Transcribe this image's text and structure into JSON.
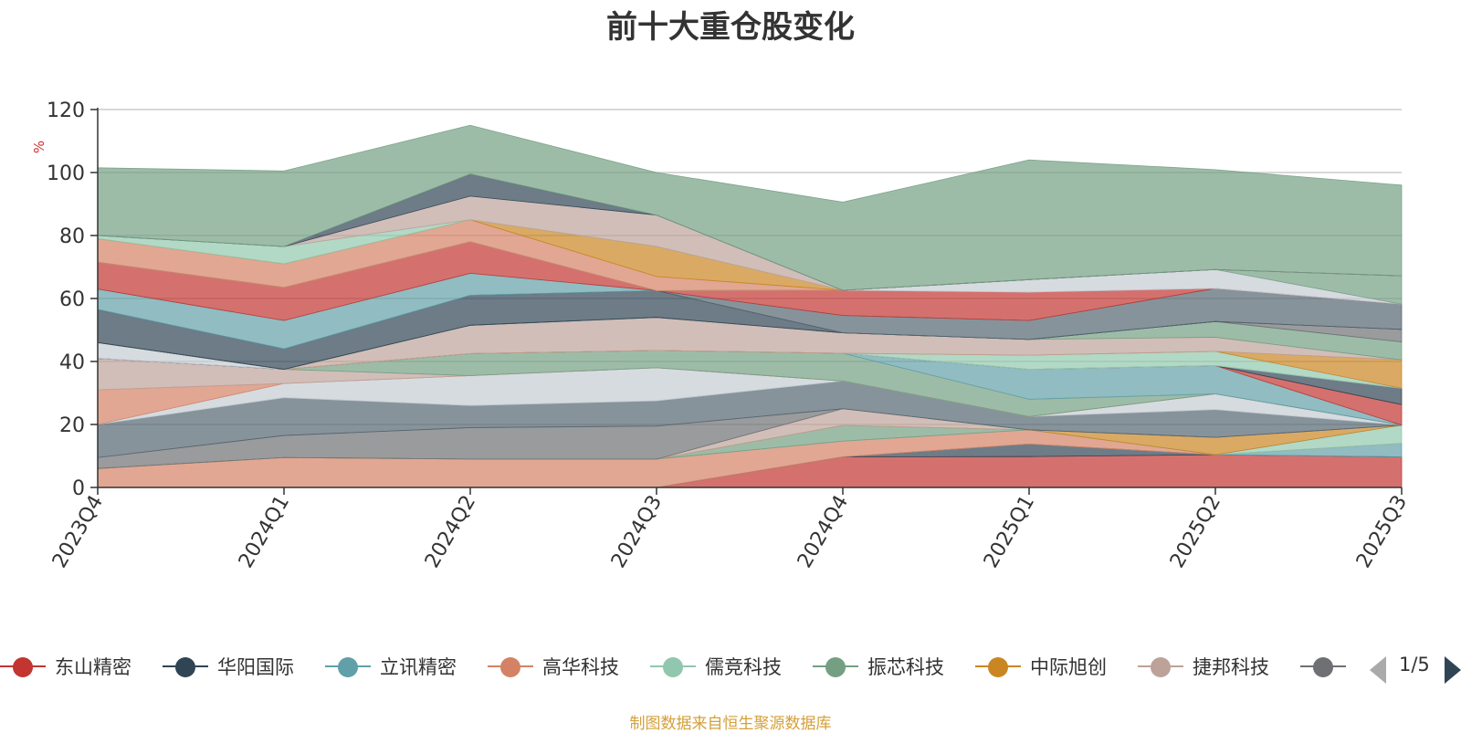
{
  "title": "前十大重仓股变化",
  "source": "制图数据来自恒生聚源数据库",
  "pager": {
    "text": "1/5"
  },
  "chart_data": {
    "type": "area",
    "stacked": true,
    "ylabel": "%",
    "ylim": [
      0,
      120
    ],
    "yticks": [
      0,
      20,
      40,
      60,
      80,
      100,
      120
    ],
    "grid": true,
    "legend_position": "bottom",
    "categories": [
      "2023Q4",
      "2024Q1",
      "2024Q2",
      "2024Q3",
      "2024Q4",
      "2025Q1",
      "2025Q2",
      "2025Q3"
    ],
    "series": [
      {
        "name": "东山精密",
        "color": "#c23531",
        "values": [
          0,
          0,
          0,
          0,
          9.7,
          9.8,
          10.4,
          9.7
        ]
      },
      {
        "name": "华阳国际",
        "color": "#2f4554",
        "values": [
          0,
          0,
          0,
          0,
          0,
          4,
          0,
          0
        ]
      },
      {
        "name": "立讯精密",
        "color": "#61a0a8",
        "values": [
          0,
          0,
          0,
          0,
          0,
          0,
          0,
          4.3
        ]
      },
      {
        "name": "高华科技",
        "color": "#d48265",
        "values": [
          6,
          9.5,
          9,
          9,
          5,
          4.5,
          0,
          0
        ]
      },
      {
        "name": "儒竞科技",
        "color": "#91c7ae",
        "values": [
          0,
          0,
          0,
          0,
          0,
          0,
          0,
          5.8
        ]
      },
      {
        "name": "振芯科技",
        "color": "#749f83",
        "values": [
          0,
          0,
          0,
          0,
          5,
          0,
          0,
          0
        ]
      },
      {
        "name": "中际旭创",
        "color": "#ca8622",
        "values": [
          0,
          0,
          0,
          0,
          0,
          0,
          5.5,
          0
        ]
      },
      {
        "name": "捷邦科技",
        "color": "#bda29a",
        "values": [
          0,
          0,
          0,
          0,
          5.3,
          0,
          0,
          0
        ]
      },
      {
        "name": "",
        "color": "#6e7074",
        "values": [
          3.5,
          7,
          10,
          10.5,
          0,
          0,
          0,
          0
        ]
      },
      {
        "name": "",
        "color": "#546570",
        "values": [
          10.5,
          12,
          7,
          8,
          8.8,
          4.2,
          8.8,
          0
        ]
      },
      {
        "name": "",
        "color": "#c4ccd3",
        "values": [
          0,
          4.5,
          9.5,
          10.5,
          0,
          0,
          5,
          0
        ]
      },
      {
        "name": "",
        "color": "#d48265",
        "values": [
          11,
          0,
          0,
          0,
          0,
          0,
          0,
          0
        ]
      },
      {
        "name": "",
        "color": "#bda29a",
        "values": [
          10,
          4.5,
          0,
          0,
          0,
          0,
          0,
          0
        ]
      },
      {
        "name": "",
        "color": "#749f83",
        "values": [
          0,
          0,
          7,
          5.5,
          8.8,
          5.5,
          0,
          0
        ]
      },
      {
        "name": "",
        "color": "#61a0a8",
        "values": [
          0,
          0,
          0,
          0,
          0,
          9.5,
          9,
          0
        ]
      },
      {
        "name": "",
        "color": "#c23531",
        "values": [
          0,
          0,
          0,
          0,
          0,
          0,
          0,
          6.5
        ]
      },
      {
        "name": "",
        "color": "#2f4554",
        "values": [
          0,
          0,
          0,
          0,
          0,
          0,
          0,
          5.2
        ]
      },
      {
        "name": "",
        "color": "#c4ccd3",
        "values": [
          5,
          0,
          0,
          0,
          0,
          0,
          0,
          0
        ]
      },
      {
        "name": "",
        "color": "#91c7ae",
        "values": [
          0,
          0,
          0,
          0,
          0,
          4.5,
          4.5,
          0
        ]
      },
      {
        "name": "",
        "color": "#ca8622",
        "values": [
          0,
          0,
          0,
          0,
          0,
          0,
          0,
          9
        ]
      },
      {
        "name": "",
        "color": "#bda29a",
        "values": [
          0,
          0,
          9,
          10.5,
          6.5,
          5,
          4.5,
          0
        ]
      },
      {
        "name": "",
        "color": "#749f83",
        "values": [
          0,
          0,
          0,
          0,
          0,
          0,
          5,
          5.7
        ]
      },
      {
        "name": "",
        "color": "#6e7074",
        "values": [
          0,
          0,
          0,
          0,
          0,
          0,
          0,
          4
        ]
      },
      {
        "name": "",
        "color": "#2f4554",
        "values": [
          10.5,
          6.5,
          9.5,
          8.5,
          0,
          0,
          0,
          0
        ]
      },
      {
        "name": "",
        "color": "#546570",
        "values": [
          0,
          0,
          0,
          0,
          5.5,
          6,
          10.5,
          8
        ]
      },
      {
        "name": "",
        "color": "#61a0a8",
        "values": [
          6.5,
          9,
          7,
          0,
          0,
          0,
          0,
          0
        ]
      },
      {
        "name": "",
        "color": "#c23531",
        "values": [
          8.5,
          10.5,
          10,
          0,
          8,
          9,
          0,
          0
        ]
      },
      {
        "name": "",
        "color": "#c4ccd3",
        "values": [
          0,
          0,
          0,
          0,
          0,
          4,
          6,
          0
        ]
      },
      {
        "name": "",
        "color": "#749f83",
        "values": [
          0,
          0,
          0,
          0,
          0,
          0,
          0,
          9
        ]
      },
      {
        "name": "",
        "color": "#d48265",
        "values": [
          7.5,
          7.5,
          7,
          4.5,
          0,
          0,
          0,
          0
        ]
      },
      {
        "name": "",
        "color": "#ca8622",
        "values": [
          0,
          0,
          0,
          9.5,
          0,
          0,
          0,
          0
        ]
      },
      {
        "name": "",
        "color": "#91c7ae",
        "values": [
          1,
          5.5,
          0,
          0,
          0,
          0,
          0,
          0
        ]
      },
      {
        "name": "",
        "color": "#bda29a",
        "values": [
          0,
          0,
          7.5,
          10,
          0,
          0,
          0,
          0
        ]
      },
      {
        "name": "",
        "color": "#2f4554",
        "values": [
          0,
          0,
          7,
          0,
          0,
          0,
          0,
          0
        ]
      },
      {
        "name": "",
        "color": "#749f83",
        "values": [
          21.5,
          24,
          15.5,
          13.5,
          28,
          38,
          31.7,
          28.8
        ]
      }
    ]
  }
}
